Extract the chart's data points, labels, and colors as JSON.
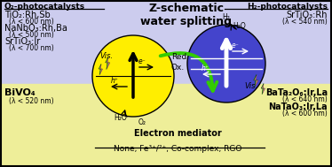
{
  "title": "Z-schematic\nwater splitting",
  "o2_title": "O₂-photocatalysts",
  "h2_title": "H₂-photocatalysts",
  "o2_top_lines": [
    [
      "TiO₂:Rh,Sb",
      7.0,
      true
    ],
    [
      "(λ < 600 nm)",
      5.5,
      false
    ],
    [
      "NaNbO₃:Rh,Ba",
      7.0,
      true
    ],
    [
      "(λ < 500 nm)",
      5.5,
      false
    ],
    [
      "SrTiO₃:Ir",
      7.0,
      true
    ],
    [
      "(λ < 700 nm)",
      5.5,
      false
    ]
  ],
  "o2_bot_lines": [
    [
      "BiVO₄",
      8.0,
      true
    ],
    [
      "(λ < 520 nm)",
      5.5,
      false
    ]
  ],
  "h2_top_lines": [
    [
      "SrTiO₃:Rh",
      7.0,
      true
    ],
    [
      "(λ < 540 nm)",
      5.5,
      false
    ]
  ],
  "h2_bot_lines": [
    [
      "BaTa₂O₆:Ir,La",
      7.0,
      true
    ],
    [
      "(λ < 640 nm)",
      5.5,
      false
    ],
    [
      "NaTaO₃:Ir,La",
      7.0,
      true
    ],
    [
      "(λ < 600 nm)",
      5.5,
      false
    ]
  ],
  "mediator_title": "Electron mediator",
  "mediator_text": "None, Fe³⁺/²⁺, Co-complex, RGO",
  "bg_top": "#ccccee",
  "bg_bot": "#eeee99",
  "yellow_circle": "#ffee00",
  "blue_circle": "#4444cc",
  "green_arrow": "#33cc00"
}
